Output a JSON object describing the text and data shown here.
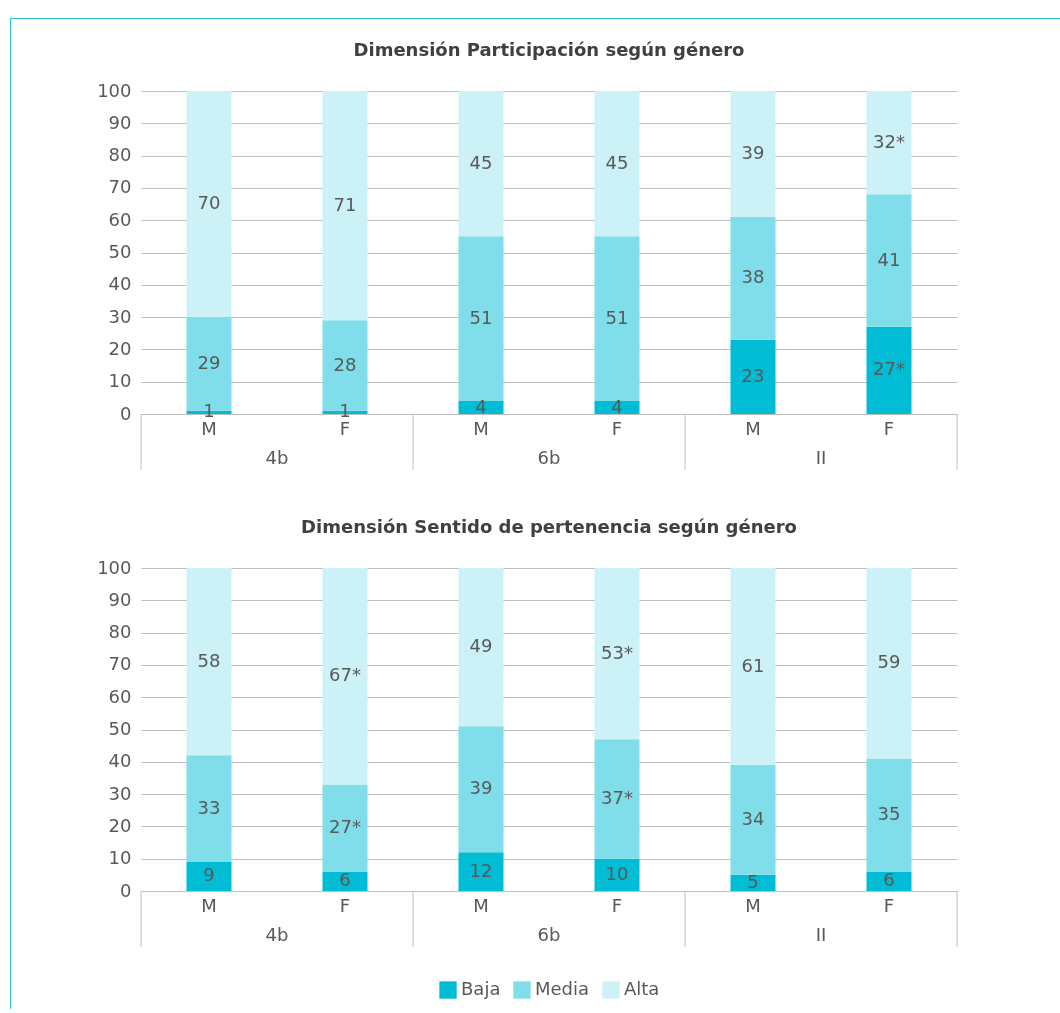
{
  "chart_data": [
    {
      "type": "bar",
      "title": "Dimensión Participación según género",
      "categories": [
        "M",
        "F",
        "M",
        "F",
        "M",
        "F"
      ],
      "annotations": [
        "4b",
        "6b",
        "II"
      ],
      "stacked": true,
      "ylim": [
        0,
        100
      ],
      "yticks": [
        0,
        10,
        20,
        30,
        40,
        50,
        60,
        70,
        80,
        90,
        100
      ],
      "grid": "y",
      "legend": false,
      "series": [
        {
          "color": "#00bcd4",
          "values": [
            1,
            1,
            4,
            4,
            23,
            27
          ],
          "value_labels": [
            "1",
            "1",
            "4",
            "4",
            "23",
            "27*"
          ]
        },
        {
          "color": "#80deea",
          "values": [
            29,
            28,
            51,
            51,
            38,
            41
          ],
          "value_labels": [
            "29",
            "28",
            "51",
            "51",
            "38",
            "41"
          ]
        },
        {
          "color": "#ccf1f6",
          "values": [
            70,
            71,
            45,
            45,
            39,
            32
          ],
          "value_labels": [
            "70",
            "71",
            "45",
            "45",
            "39",
            "32*"
          ]
        }
      ]
    },
    {
      "type": "bar",
      "title": "Dimensión Sentido de pertenencia según género",
      "categories": [
        "M",
        "F",
        "M",
        "F",
        "M",
        "F"
      ],
      "annotations": [
        "4b",
        "6b",
        "II"
      ],
      "stacked": true,
      "ylim": [
        0,
        100
      ],
      "yticks": [
        0,
        10,
        20,
        30,
        40,
        50,
        60,
        70,
        80,
        90,
        100
      ],
      "grid": "y",
      "legend": "bottom",
      "series": [
        {
          "name": "Baja",
          "color": "#00bcd4",
          "values": [
            9,
            6,
            12,
            10,
            5,
            6
          ],
          "value_labels": [
            "9",
            "6",
            "12",
            "10",
            "5",
            "6"
          ]
        },
        {
          "name": "Media",
          "color": "#80deea",
          "values": [
            33,
            27,
            39,
            37,
            34,
            35
          ],
          "value_labels": [
            "33",
            "27*",
            "39",
            "37*",
            "34",
            "35"
          ]
        },
        {
          "name": "Alta",
          "color": "#ccf1f6",
          "values": [
            58,
            67,
            49,
            53,
            61,
            59
          ],
          "value_labels": [
            "58",
            "67*",
            "49",
            "53*",
            "61",
            "59"
          ]
        }
      ]
    }
  ]
}
